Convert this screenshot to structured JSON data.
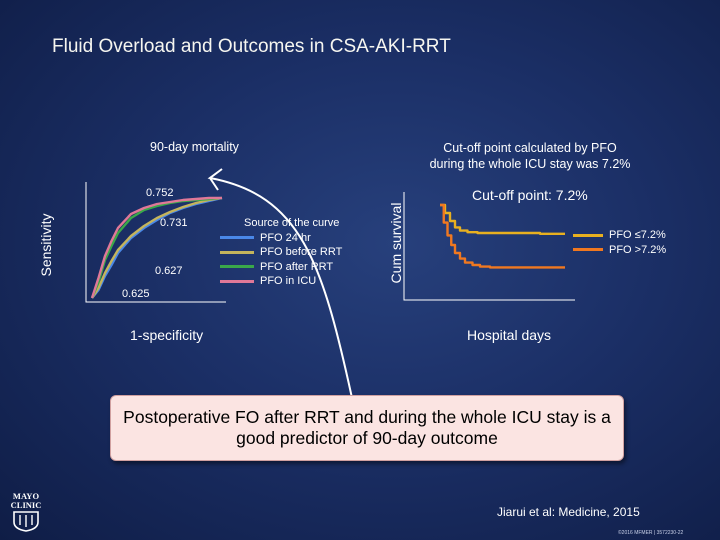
{
  "slide": {
    "title": "Fluid Overload and Outcomes in CSA-AKI-RRT",
    "left_caption": "90-day mortality",
    "right_caption_line1": "Cut-off point calculated by PFO",
    "right_caption_line2": "during the whole ICU stay was 7.2%",
    "conclusion": "Postoperative FO after RRT and during the whole ICU stay is a good predictor of 90-day outcome",
    "citation": "Jiarui et al:  Medicine, 2015",
    "copyright": "©2016 MFMER  |  3572230-22",
    "logo_text": "MAYO CLINIC",
    "colors": {
      "background": "#1b2f66",
      "conclusion_bg": "#fbe4e2"
    }
  },
  "chart_data": [
    {
      "type": "line",
      "subtype": "roc",
      "xlabel": "1-specificity",
      "ylabel": "Sensitivity",
      "xlim": [
        0,
        1
      ],
      "ylim": [
        0,
        1
      ],
      "legend_title": "Source of the curve",
      "legend_position": "right",
      "series": [
        {
          "name": "PFO 24 hr",
          "color": "#4a88e8",
          "auc_label": "0.625",
          "x": [
            0,
            0.05,
            0.1,
            0.15,
            0.2,
            0.3,
            0.4,
            0.5,
            0.6,
            0.7,
            0.8,
            0.9,
            1
          ],
          "y": [
            0,
            0.08,
            0.22,
            0.33,
            0.45,
            0.6,
            0.7,
            0.78,
            0.85,
            0.9,
            0.94,
            0.97,
            1
          ]
        },
        {
          "name": "PFO before RRT",
          "color": "#c4b45c",
          "auc_label": "0.627",
          "x": [
            0,
            0.05,
            0.1,
            0.15,
            0.2,
            0.3,
            0.4,
            0.5,
            0.6,
            0.7,
            0.8,
            0.9,
            1
          ],
          "y": [
            0,
            0.1,
            0.25,
            0.37,
            0.48,
            0.62,
            0.72,
            0.8,
            0.86,
            0.91,
            0.95,
            0.98,
            1
          ]
        },
        {
          "name": "PFO after RRT",
          "color": "#3aa84a",
          "auc_label": "0.731",
          "x": [
            0,
            0.05,
            0.1,
            0.15,
            0.2,
            0.3,
            0.4,
            0.5,
            0.6,
            0.7,
            0.8,
            0.9,
            1
          ],
          "y": [
            0,
            0.16,
            0.38,
            0.52,
            0.65,
            0.8,
            0.88,
            0.92,
            0.95,
            0.97,
            0.98,
            0.99,
            1
          ]
        },
        {
          "name": "PFO in ICU",
          "color": "#e07898",
          "auc_label": "0.752",
          "x": [
            0,
            0.05,
            0.1,
            0.15,
            0.2,
            0.3,
            0.4,
            0.5,
            0.6,
            0.7,
            0.8,
            0.9,
            1
          ],
          "y": [
            0,
            0.2,
            0.42,
            0.57,
            0.7,
            0.84,
            0.9,
            0.94,
            0.96,
            0.98,
            0.99,
            1,
            1
          ]
        }
      ]
    },
    {
      "type": "line",
      "subtype": "kaplan-meier",
      "title": "Cut-off point: 7.2%",
      "xlabel": "Hospital days",
      "ylabel": "Cum survival",
      "ylim": [
        0,
        1
      ],
      "legend_position": "right",
      "series": [
        {
          "name": "PFO ≤7.2%",
          "color": "#e8b020",
          "x": [
            0,
            0.04,
            0.08,
            0.12,
            0.16,
            0.22,
            0.3,
            0.4,
            0.6,
            0.8,
            1
          ],
          "y": [
            1,
            0.9,
            0.8,
            0.72,
            0.68,
            0.66,
            0.65,
            0.65,
            0.65,
            0.64,
            0.64
          ]
        },
        {
          "name": "PFO >7.2%",
          "color": "#f07820",
          "x": [
            0,
            0.03,
            0.06,
            0.09,
            0.12,
            0.16,
            0.2,
            0.26,
            0.32,
            0.4,
            0.6,
            0.8,
            1
          ],
          "y": [
            1,
            0.78,
            0.62,
            0.5,
            0.4,
            0.33,
            0.28,
            0.25,
            0.23,
            0.22,
            0.22,
            0.22,
            0.22
          ]
        }
      ]
    }
  ]
}
